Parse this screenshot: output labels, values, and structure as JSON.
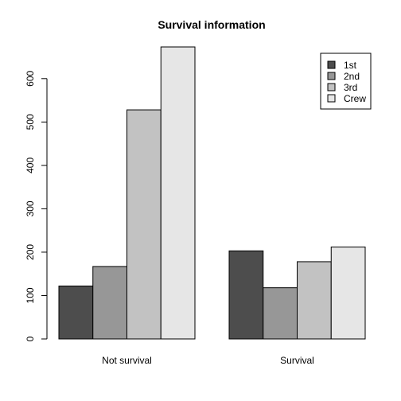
{
  "chart_data": {
    "type": "bar",
    "title": "Survival information",
    "xlabel": "",
    "ylabel": "",
    "categories": [
      "Not survival",
      "Survival"
    ],
    "series": [
      {
        "name": "1st",
        "color": "#4d4d4d",
        "values": [
          122,
          203
        ]
      },
      {
        "name": "2nd",
        "color": "#979797",
        "values": [
          167,
          118
        ]
      },
      {
        "name": "3rd",
        "color": "#c2c2c2",
        "values": [
          528,
          178
        ]
      },
      {
        "name": "Crew",
        "color": "#e6e6e6",
        "values": [
          673,
          212
        ]
      }
    ],
    "ylim": [
      0,
      673
    ],
    "yticks": [
      0,
      100,
      200,
      300,
      400,
      500,
      600
    ],
    "legend_position": "top-right",
    "grid": false
  }
}
